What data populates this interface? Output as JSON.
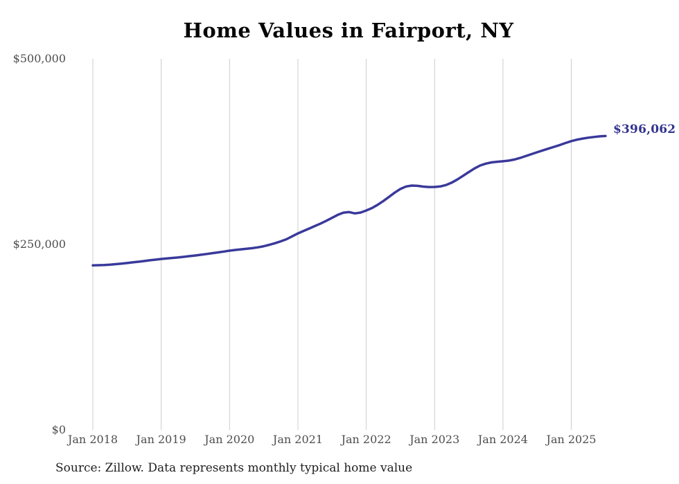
{
  "title": "Home Values in Fairport, NY",
  "source_note": "Source: Zillow. Data represents monthly typical home value",
  "end_label": "$396,062",
  "colors": {
    "line": "#39399b",
    "end_label": "#33338f",
    "grid": "#cccccc",
    "tick_text": "#4d4d4d",
    "title_text": "#060606",
    "background": "#ffffff"
  },
  "y_axis": {
    "ticks": [
      {
        "label": "$500,000",
        "value": 500000
      },
      {
        "label": "$250,000",
        "value": 250000
      },
      {
        "label": "$0",
        "value": 0
      }
    ]
  },
  "x_axis": {
    "ticks": [
      {
        "label": "Jan 2018",
        "month_index": 0
      },
      {
        "label": "Jan 2019",
        "month_index": 12
      },
      {
        "label": "Jan 2020",
        "month_index": 24
      },
      {
        "label": "Jan 2021",
        "month_index": 36
      },
      {
        "label": "Jan 2022",
        "month_index": 48
      },
      {
        "label": "Jan 2023",
        "month_index": 60
      },
      {
        "label": "Jan 2024",
        "month_index": 72
      },
      {
        "label": "Jan 2025",
        "month_index": 84
      }
    ]
  },
  "chart_data": {
    "type": "line",
    "title": "Home Values in Fairport, NY",
    "xlabel": "",
    "ylabel": "",
    "ylim": [
      0,
      500000
    ],
    "grid": "vertical-only",
    "legend": false,
    "y_tick_labels": [
      "$500,000",
      "$250,000",
      "$0"
    ],
    "x_tick_labels": [
      "Jan 2018",
      "Jan 2019",
      "Jan 2020",
      "Jan 2021",
      "Jan 2022",
      "Jan 2023",
      "Jan 2024",
      "Jan 2025"
    ],
    "last_point_label": "$396,062",
    "series": [
      {
        "name": "Typical home value",
        "color": "#39399b",
        "months": [
          "2018-01",
          "2018-02",
          "2018-03",
          "2018-04",
          "2018-05",
          "2018-06",
          "2018-07",
          "2018-08",
          "2018-09",
          "2018-10",
          "2018-11",
          "2018-12",
          "2019-01",
          "2019-02",
          "2019-03",
          "2019-04",
          "2019-05",
          "2019-06",
          "2019-07",
          "2019-08",
          "2019-09",
          "2019-10",
          "2019-11",
          "2019-12",
          "2020-01",
          "2020-02",
          "2020-03",
          "2020-04",
          "2020-05",
          "2020-06",
          "2020-07",
          "2020-08",
          "2020-09",
          "2020-10",
          "2020-11",
          "2020-12",
          "2021-01",
          "2021-02",
          "2021-03",
          "2021-04",
          "2021-05",
          "2021-06",
          "2021-07",
          "2021-08",
          "2021-09",
          "2021-10",
          "2021-11",
          "2021-12",
          "2022-01",
          "2022-02",
          "2022-03",
          "2022-04",
          "2022-05",
          "2022-06",
          "2022-07",
          "2022-08",
          "2022-09",
          "2022-10",
          "2022-11",
          "2022-12",
          "2023-01",
          "2023-02",
          "2023-03",
          "2023-04",
          "2023-05",
          "2023-06",
          "2023-07",
          "2023-08",
          "2023-09",
          "2023-10",
          "2023-11",
          "2023-12",
          "2024-01",
          "2024-02",
          "2024-03",
          "2024-04",
          "2024-05",
          "2024-06",
          "2024-07",
          "2024-08",
          "2024-09",
          "2024-10",
          "2024-11",
          "2024-12",
          "2025-01",
          "2025-02",
          "2025-03",
          "2025-04",
          "2025-05",
          "2025-06",
          "2025-07"
        ],
        "values": [
          221800,
          222000,
          222300,
          222800,
          223400,
          224100,
          224900,
          225800,
          226700,
          227600,
          228600,
          229500,
          230400,
          231100,
          231800,
          232500,
          233300,
          234200,
          235100,
          236100,
          237100,
          238200,
          239300,
          240400,
          241600,
          242500,
          243400,
          244200,
          245000,
          246100,
          247600,
          249500,
          251700,
          254200,
          257000,
          260900,
          264800,
          268200,
          271500,
          274800,
          278200,
          281900,
          285800,
          289800,
          292800,
          293600,
          291800,
          292900,
          295700,
          299000,
          303400,
          308500,
          314100,
          319800,
          324700,
          328100,
          329300,
          328900,
          327900,
          327300,
          327400,
          328100,
          330000,
          333200,
          337500,
          342400,
          347500,
          352300,
          356300,
          358900,
          360500,
          361400,
          362000,
          362900,
          364400,
          366500,
          369000,
          371600,
          374200,
          376700,
          379100,
          381500,
          384000,
          386700,
          389200,
          391100,
          392600,
          393800,
          394800,
          395600,
          396062
        ]
      }
    ]
  }
}
